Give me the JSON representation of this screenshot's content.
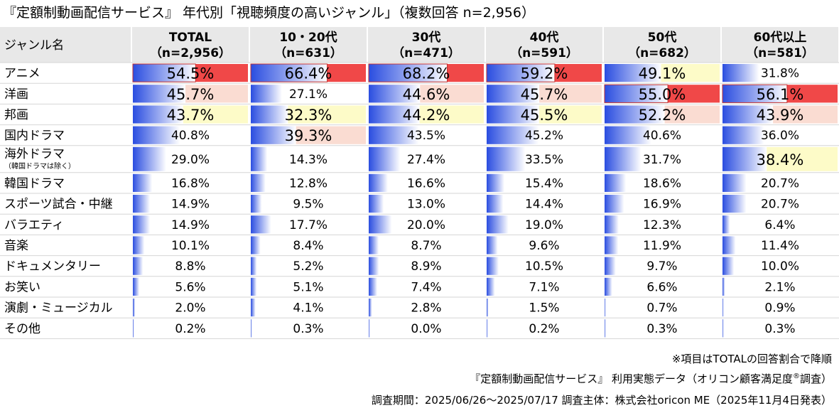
{
  "title": "『定額制動画配信サービス』 年代別「視聴頻度の高いジャンル」（複数回答 n=2,956）",
  "chart_data": {
    "type": "table",
    "corner_label": "ジャンル名",
    "columns": [
      {
        "name": "TOTAL",
        "n": "（n=2,956）"
      },
      {
        "name": "10・20代",
        "n": "（n=631）"
      },
      {
        "name": "30代",
        "n": "（n=471）"
      },
      {
        "name": "40代",
        "n": "（n=591）"
      },
      {
        "name": "50代",
        "n": "（n=682）"
      },
      {
        "name": "60代以上",
        "n": "（n=581）"
      }
    ],
    "rows": [
      {
        "label": "アニメ",
        "sub": "",
        "values": [
          54.5,
          66.4,
          68.2,
          59.2,
          49.1,
          31.8
        ],
        "ranks": [
          1,
          1,
          1,
          1,
          3,
          0
        ]
      },
      {
        "label": "洋画",
        "sub": "",
        "values": [
          45.7,
          27.1,
          44.6,
          45.7,
          55.0,
          56.1
        ],
        "ranks": [
          2,
          0,
          2,
          2,
          1,
          1
        ]
      },
      {
        "label": "邦画",
        "sub": "",
        "values": [
          43.7,
          32.3,
          44.2,
          45.5,
          52.2,
          43.9
        ],
        "ranks": [
          3,
          3,
          3,
          3,
          2,
          2
        ]
      },
      {
        "label": "国内ドラマ",
        "sub": "",
        "values": [
          40.8,
          39.3,
          43.5,
          45.2,
          40.6,
          36.0
        ],
        "ranks": [
          0,
          2,
          0,
          0,
          0,
          0
        ]
      },
      {
        "label": "海外ドラマ",
        "sub": "（韓国ドラマは除く）",
        "values": [
          29.0,
          14.3,
          27.4,
          33.5,
          31.7,
          38.4
        ],
        "ranks": [
          0,
          0,
          0,
          0,
          0,
          3
        ]
      },
      {
        "label": "韓国ドラマ",
        "sub": "",
        "values": [
          16.8,
          12.8,
          16.6,
          15.4,
          18.6,
          20.7
        ],
        "ranks": [
          0,
          0,
          0,
          0,
          0,
          0
        ]
      },
      {
        "label": "スポーツ試合・中継",
        "sub": "",
        "values": [
          14.9,
          9.5,
          13.0,
          14.4,
          16.9,
          20.7
        ],
        "ranks": [
          0,
          0,
          0,
          0,
          0,
          0
        ]
      },
      {
        "label": "バラエティ",
        "sub": "",
        "values": [
          14.9,
          17.7,
          20.0,
          19.0,
          12.3,
          6.4
        ],
        "ranks": [
          0,
          0,
          0,
          0,
          0,
          0
        ]
      },
      {
        "label": "音楽",
        "sub": "",
        "values": [
          10.1,
          8.4,
          8.7,
          9.6,
          11.9,
          11.4
        ],
        "ranks": [
          0,
          0,
          0,
          0,
          0,
          0
        ]
      },
      {
        "label": "ドキュメンタリー",
        "sub": "",
        "values": [
          8.8,
          5.2,
          8.9,
          10.5,
          9.7,
          10.0
        ],
        "ranks": [
          0,
          0,
          0,
          0,
          0,
          0
        ]
      },
      {
        "label": "お笑い",
        "sub": "",
        "values": [
          5.6,
          5.1,
          7.4,
          7.1,
          6.6,
          2.1
        ],
        "ranks": [
          0,
          0,
          0,
          0,
          0,
          0
        ]
      },
      {
        "label": "演劇・ミュージカル",
        "sub": "",
        "values": [
          2.0,
          4.1,
          2.8,
          1.5,
          0.7,
          0.9
        ],
        "ranks": [
          0,
          0,
          0,
          0,
          0,
          0
        ]
      },
      {
        "label": "その他",
        "sub": "",
        "values": [
          0.2,
          0.3,
          0.0,
          0.2,
          0.3,
          0.3
        ],
        "ranks": [
          0,
          0,
          0,
          0,
          0,
          0
        ]
      }
    ],
    "value_max": 100,
    "colors": {
      "bar": "#2a4de0",
      "rank1": "#f04848",
      "rank2": "#fadcd2",
      "rank3": "#fdfbc8",
      "header_bg": "#e8e8e8",
      "grid": "#ffffff"
    }
  },
  "footnotes": {
    "note": "※項目はTOTALの回答割合で降順",
    "source_main": "『定額制動画配信サービス』 利用実態データ（オリコン顧客満足度",
    "source_sup": "®",
    "source_end": "調査）",
    "period": "調査期間：2025/06/26～2025/07/17 調査主体：株式会社oricon ME（2025年11月4日発表）"
  }
}
